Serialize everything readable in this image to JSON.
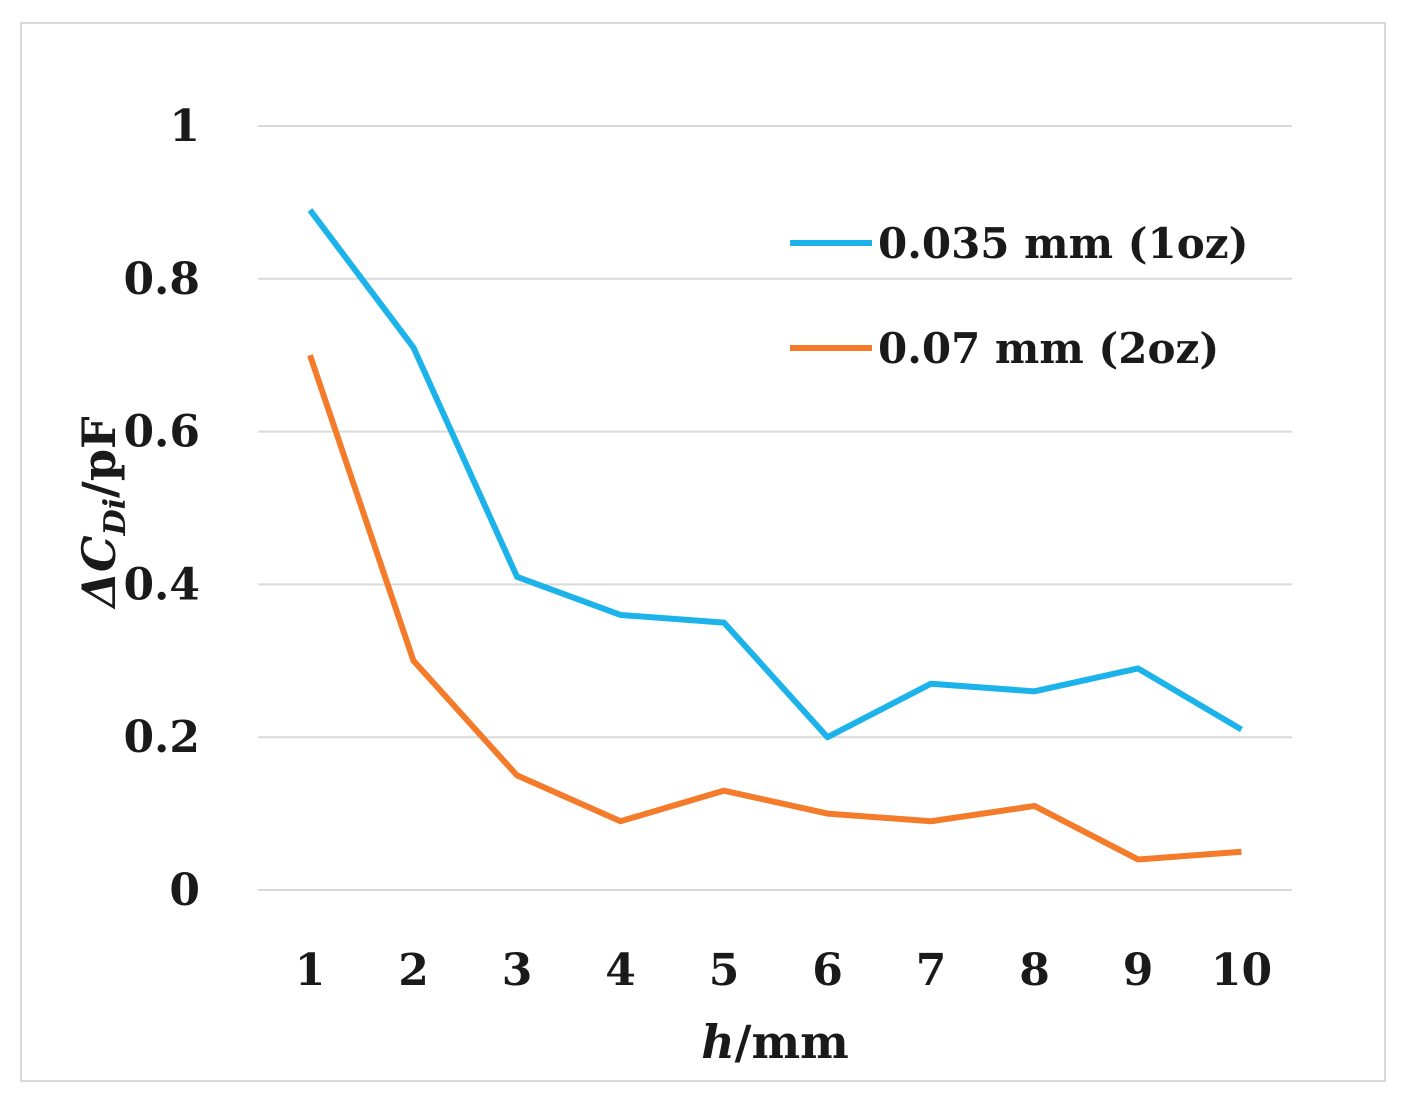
{
  "chart_data": {
    "type": "line",
    "title": "",
    "xlabel": "h/mm",
    "xlabel_parts": {
      "italic": "h",
      "rest": "/mm"
    },
    "ylabel": "ΔC_Di/pF",
    "ylabel_parts": {
      "delta_c": "ΔC",
      "subscript": "Di",
      "rest": "/pF"
    },
    "categories": [
      "1",
      "2",
      "3",
      "4",
      "5",
      "6",
      "7",
      "8",
      "9",
      "10"
    ],
    "ylim": [
      0,
      1
    ],
    "yticks": [
      0,
      0.2,
      0.4,
      0.6,
      0.8,
      1
    ],
    "ytick_labels": [
      "0",
      "0.2",
      "0.4",
      "0.6",
      "0.8",
      "1"
    ],
    "grid": true,
    "legend_position": "top-right",
    "series": [
      {
        "name": "0.035 mm (1oz)",
        "color": "#1cb3ea",
        "values": [
          0.89,
          0.71,
          0.41,
          0.36,
          0.35,
          0.2,
          0.27,
          0.26,
          0.29,
          0.21
        ]
      },
      {
        "name": "0.07 mm (2oz)",
        "color": "#f47b2a",
        "values": [
          0.7,
          0.3,
          0.15,
          0.09,
          0.13,
          0.1,
          0.09,
          0.11,
          0.04,
          0.05
        ]
      }
    ]
  }
}
